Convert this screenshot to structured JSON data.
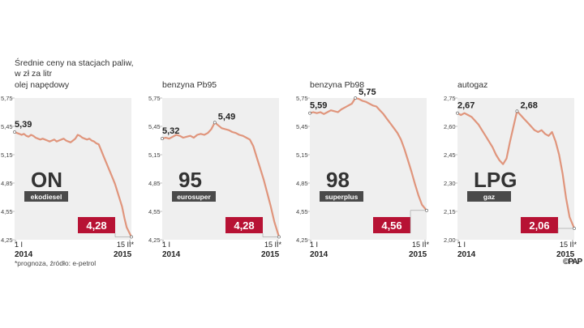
{
  "header": {
    "line1": "Średnie ceny na stacjach paliw,",
    "line2": "w zł za litr"
  },
  "footnote": "*prognoza, źródło: e-petrol",
  "copyright": "©PAP",
  "colors": {
    "line": "#e0957c",
    "bg": "#efefef",
    "badge": "#b71234",
    "label_box": "#4a4a4a",
    "big_code": "#333333"
  },
  "chart_data": [
    {
      "type": "line",
      "title": "olej napędowy",
      "code": "ON",
      "sublabel": "ekodiesel",
      "ylim": [
        4.25,
        5.75
      ],
      "yticks": [
        "5,75",
        "5,45",
        "5,15",
        "4,85",
        "4,55",
        "4,25"
      ],
      "xlabels": {
        "start_top": "1 I",
        "start_bottom": "2014",
        "end_top": "15 II",
        "end_bottom": "2015"
      },
      "start_label": "5,39",
      "end_label": "4,28",
      "x": [
        0,
        0.02,
        0.04,
        0.06,
        0.08,
        0.1,
        0.12,
        0.14,
        0.16,
        0.18,
        0.2,
        0.22,
        0.24,
        0.26,
        0.28,
        0.3,
        0.32,
        0.34,
        0.36,
        0.38,
        0.4,
        0.42,
        0.44,
        0.46,
        0.48,
        0.5,
        0.52,
        0.54,
        0.56,
        0.58,
        0.6,
        0.62,
        0.64,
        0.66,
        0.68,
        0.7,
        0.72,
        0.74,
        0.76,
        0.78,
        0.8,
        0.82,
        0.84,
        0.86,
        0.88,
        0.9,
        0.92,
        0.94,
        0.96,
        1
      ],
      "values": [
        5.39,
        5.38,
        5.37,
        5.36,
        5.37,
        5.35,
        5.34,
        5.36,
        5.35,
        5.33,
        5.32,
        5.31,
        5.32,
        5.31,
        5.3,
        5.29,
        5.3,
        5.31,
        5.29,
        5.3,
        5.31,
        5.32,
        5.3,
        5.29,
        5.28,
        5.3,
        5.32,
        5.36,
        5.35,
        5.33,
        5.32,
        5.31,
        5.32,
        5.3,
        5.29,
        5.27,
        5.26,
        5.2,
        5.14,
        5.08,
        5.02,
        4.96,
        4.9,
        4.84,
        4.76,
        4.68,
        4.6,
        4.48,
        4.38,
        4.28
      ]
    },
    {
      "type": "line",
      "title": "benzyna Pb95",
      "code": "95",
      "sublabel": "eurosuper",
      "ylim": [
        4.25,
        5.75
      ],
      "yticks": [
        "5,75",
        "5,45",
        "5,15",
        "4,85",
        "4,55",
        "4,25"
      ],
      "xlabels": {
        "start_top": "1 I",
        "start_bottom": "2014",
        "end_top": "15 II",
        "end_bottom": "2015"
      },
      "start_label": "5,32",
      "end_label": "4,28",
      "x": [
        0,
        0.03,
        0.06,
        0.09,
        0.12,
        0.15,
        0.18,
        0.21,
        0.24,
        0.27,
        0.3,
        0.33,
        0.36,
        0.39,
        0.42,
        0.45,
        0.48,
        0.51,
        0.54,
        0.57,
        0.6,
        0.63,
        0.66,
        0.69,
        0.72,
        0.75,
        0.78,
        0.81,
        0.84,
        0.87,
        0.9,
        0.93,
        0.96,
        1
      ],
      "values": [
        5.32,
        5.33,
        5.32,
        5.34,
        5.36,
        5.35,
        5.33,
        5.34,
        5.35,
        5.33,
        5.36,
        5.37,
        5.36,
        5.38,
        5.42,
        5.49,
        5.46,
        5.43,
        5.42,
        5.41,
        5.39,
        5.38,
        5.36,
        5.35,
        5.33,
        5.31,
        5.24,
        5.12,
        5.0,
        4.88,
        4.74,
        4.6,
        4.44,
        4.28
      ]
    },
    {
      "type": "line",
      "title": "benzyna Pb98",
      "code": "98",
      "sublabel": "superplus",
      "ylim": [
        4.25,
        5.75
      ],
      "yticks": [
        "5,75",
        "5,45",
        "5,15",
        "4,85",
        "4,55",
        "4,25"
      ],
      "xlabels": {
        "start_top": "1 I",
        "start_bottom": "2014",
        "end_top": "15 II",
        "end_bottom": "2015"
      },
      "start_label": "5,59",
      "end_label": "4,56",
      "x": [
        0,
        0.03,
        0.06,
        0.09,
        0.12,
        0.15,
        0.18,
        0.21,
        0.24,
        0.27,
        0.3,
        0.33,
        0.36,
        0.39,
        0.42,
        0.45,
        0.48,
        0.51,
        0.54,
        0.57,
        0.6,
        0.63,
        0.66,
        0.69,
        0.72,
        0.75,
        0.78,
        0.81,
        0.84,
        0.87,
        0.9,
        0.93,
        0.96,
        1
      ],
      "values": [
        5.59,
        5.6,
        5.59,
        5.6,
        5.58,
        5.6,
        5.62,
        5.61,
        5.6,
        5.63,
        5.65,
        5.67,
        5.69,
        5.75,
        5.74,
        5.72,
        5.71,
        5.69,
        5.67,
        5.66,
        5.62,
        5.58,
        5.53,
        5.48,
        5.43,
        5.38,
        5.31,
        5.21,
        5.09,
        4.97,
        4.84,
        4.72,
        4.62,
        4.56
      ]
    },
    {
      "type": "line",
      "title": "autogaz",
      "code": "LPG",
      "sublabel": "gaz",
      "ylim": [
        2.0,
        2.75
      ],
      "yticks": [
        "2,75",
        "2,60",
        "2,45",
        "2,30",
        "2,15",
        "2,00"
      ],
      "xlabels": {
        "start_top": "1 I",
        "start_bottom": "2014",
        "end_top": "15 II",
        "end_bottom": "2015"
      },
      "start_label": "2,67",
      "end_label": "2,06",
      "x": [
        0,
        0.03,
        0.06,
        0.09,
        0.12,
        0.15,
        0.18,
        0.21,
        0.24,
        0.27,
        0.3,
        0.33,
        0.36,
        0.39,
        0.42,
        0.45,
        0.48,
        0.51,
        0.54,
        0.57,
        0.6,
        0.63,
        0.66,
        0.69,
        0.72,
        0.75,
        0.78,
        0.81,
        0.84,
        0.87,
        0.9,
        0.93,
        0.96,
        1
      ],
      "values": [
        2.67,
        2.66,
        2.67,
        2.66,
        2.65,
        2.63,
        2.61,
        2.58,
        2.55,
        2.52,
        2.49,
        2.45,
        2.42,
        2.4,
        2.43,
        2.52,
        2.6,
        2.68,
        2.66,
        2.64,
        2.62,
        2.6,
        2.58,
        2.57,
        2.58,
        2.56,
        2.55,
        2.57,
        2.52,
        2.45,
        2.35,
        2.22,
        2.12,
        2.06
      ]
    }
  ]
}
